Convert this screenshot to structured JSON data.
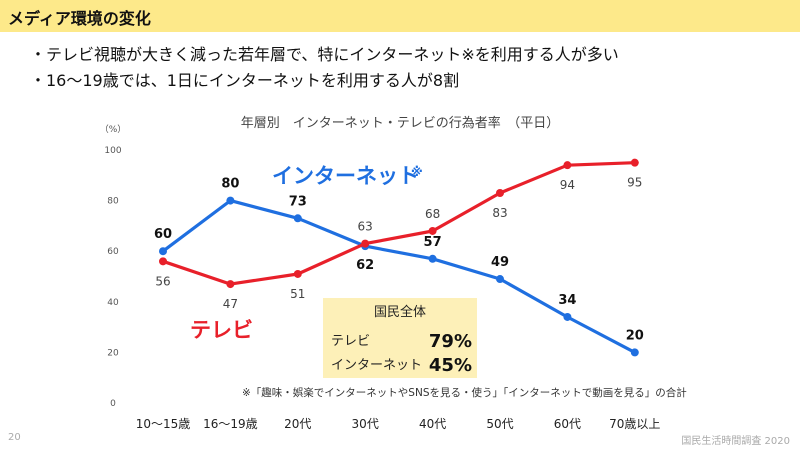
{
  "header": {
    "title": "メディア環境の変化"
  },
  "bullets": [
    "・テレビ視聴が大きく減った若年層で、特にインターネット※を利用する人が多い",
    "・16～19歳では、1日にインターネットを利用する人が8割"
  ],
  "chart_data": {
    "type": "line",
    "title": "年層別　インターネット・テレビの行為者率　（平日）",
    "ylabel": "（%）",
    "ylim": [
      0,
      100
    ],
    "yticks": [
      0,
      20,
      40,
      60,
      80,
      100
    ],
    "grid": false,
    "categories": [
      "10～15歳",
      "16～19歳",
      "20代",
      "30代",
      "40代",
      "50代",
      "60代",
      "70歳以上"
    ],
    "series": [
      {
        "name": "インターネット",
        "name_mark": "※",
        "color": "#1f6fe0",
        "values": [
          60,
          80,
          73,
          62,
          57,
          49,
          34,
          20
        ]
      },
      {
        "name": "テレビ",
        "color": "#e8202a",
        "values": [
          56,
          47,
          51,
          63,
          68,
          83,
          94,
          95
        ]
      }
    ],
    "summary": {
      "heading": "国民全体",
      "rows": [
        {
          "label": "テレビ",
          "value": "79%"
        },
        {
          "label": "インターネット",
          "value": "45%"
        }
      ],
      "bg_color": "#fdf0b8"
    },
    "footnote": "※「趣味・娯楽でインターネットやSNSを見る・使う」「インターネットで動画を見る」の合計"
  },
  "footer": {
    "page": "20",
    "source": "国民生活時間調査 2020"
  }
}
